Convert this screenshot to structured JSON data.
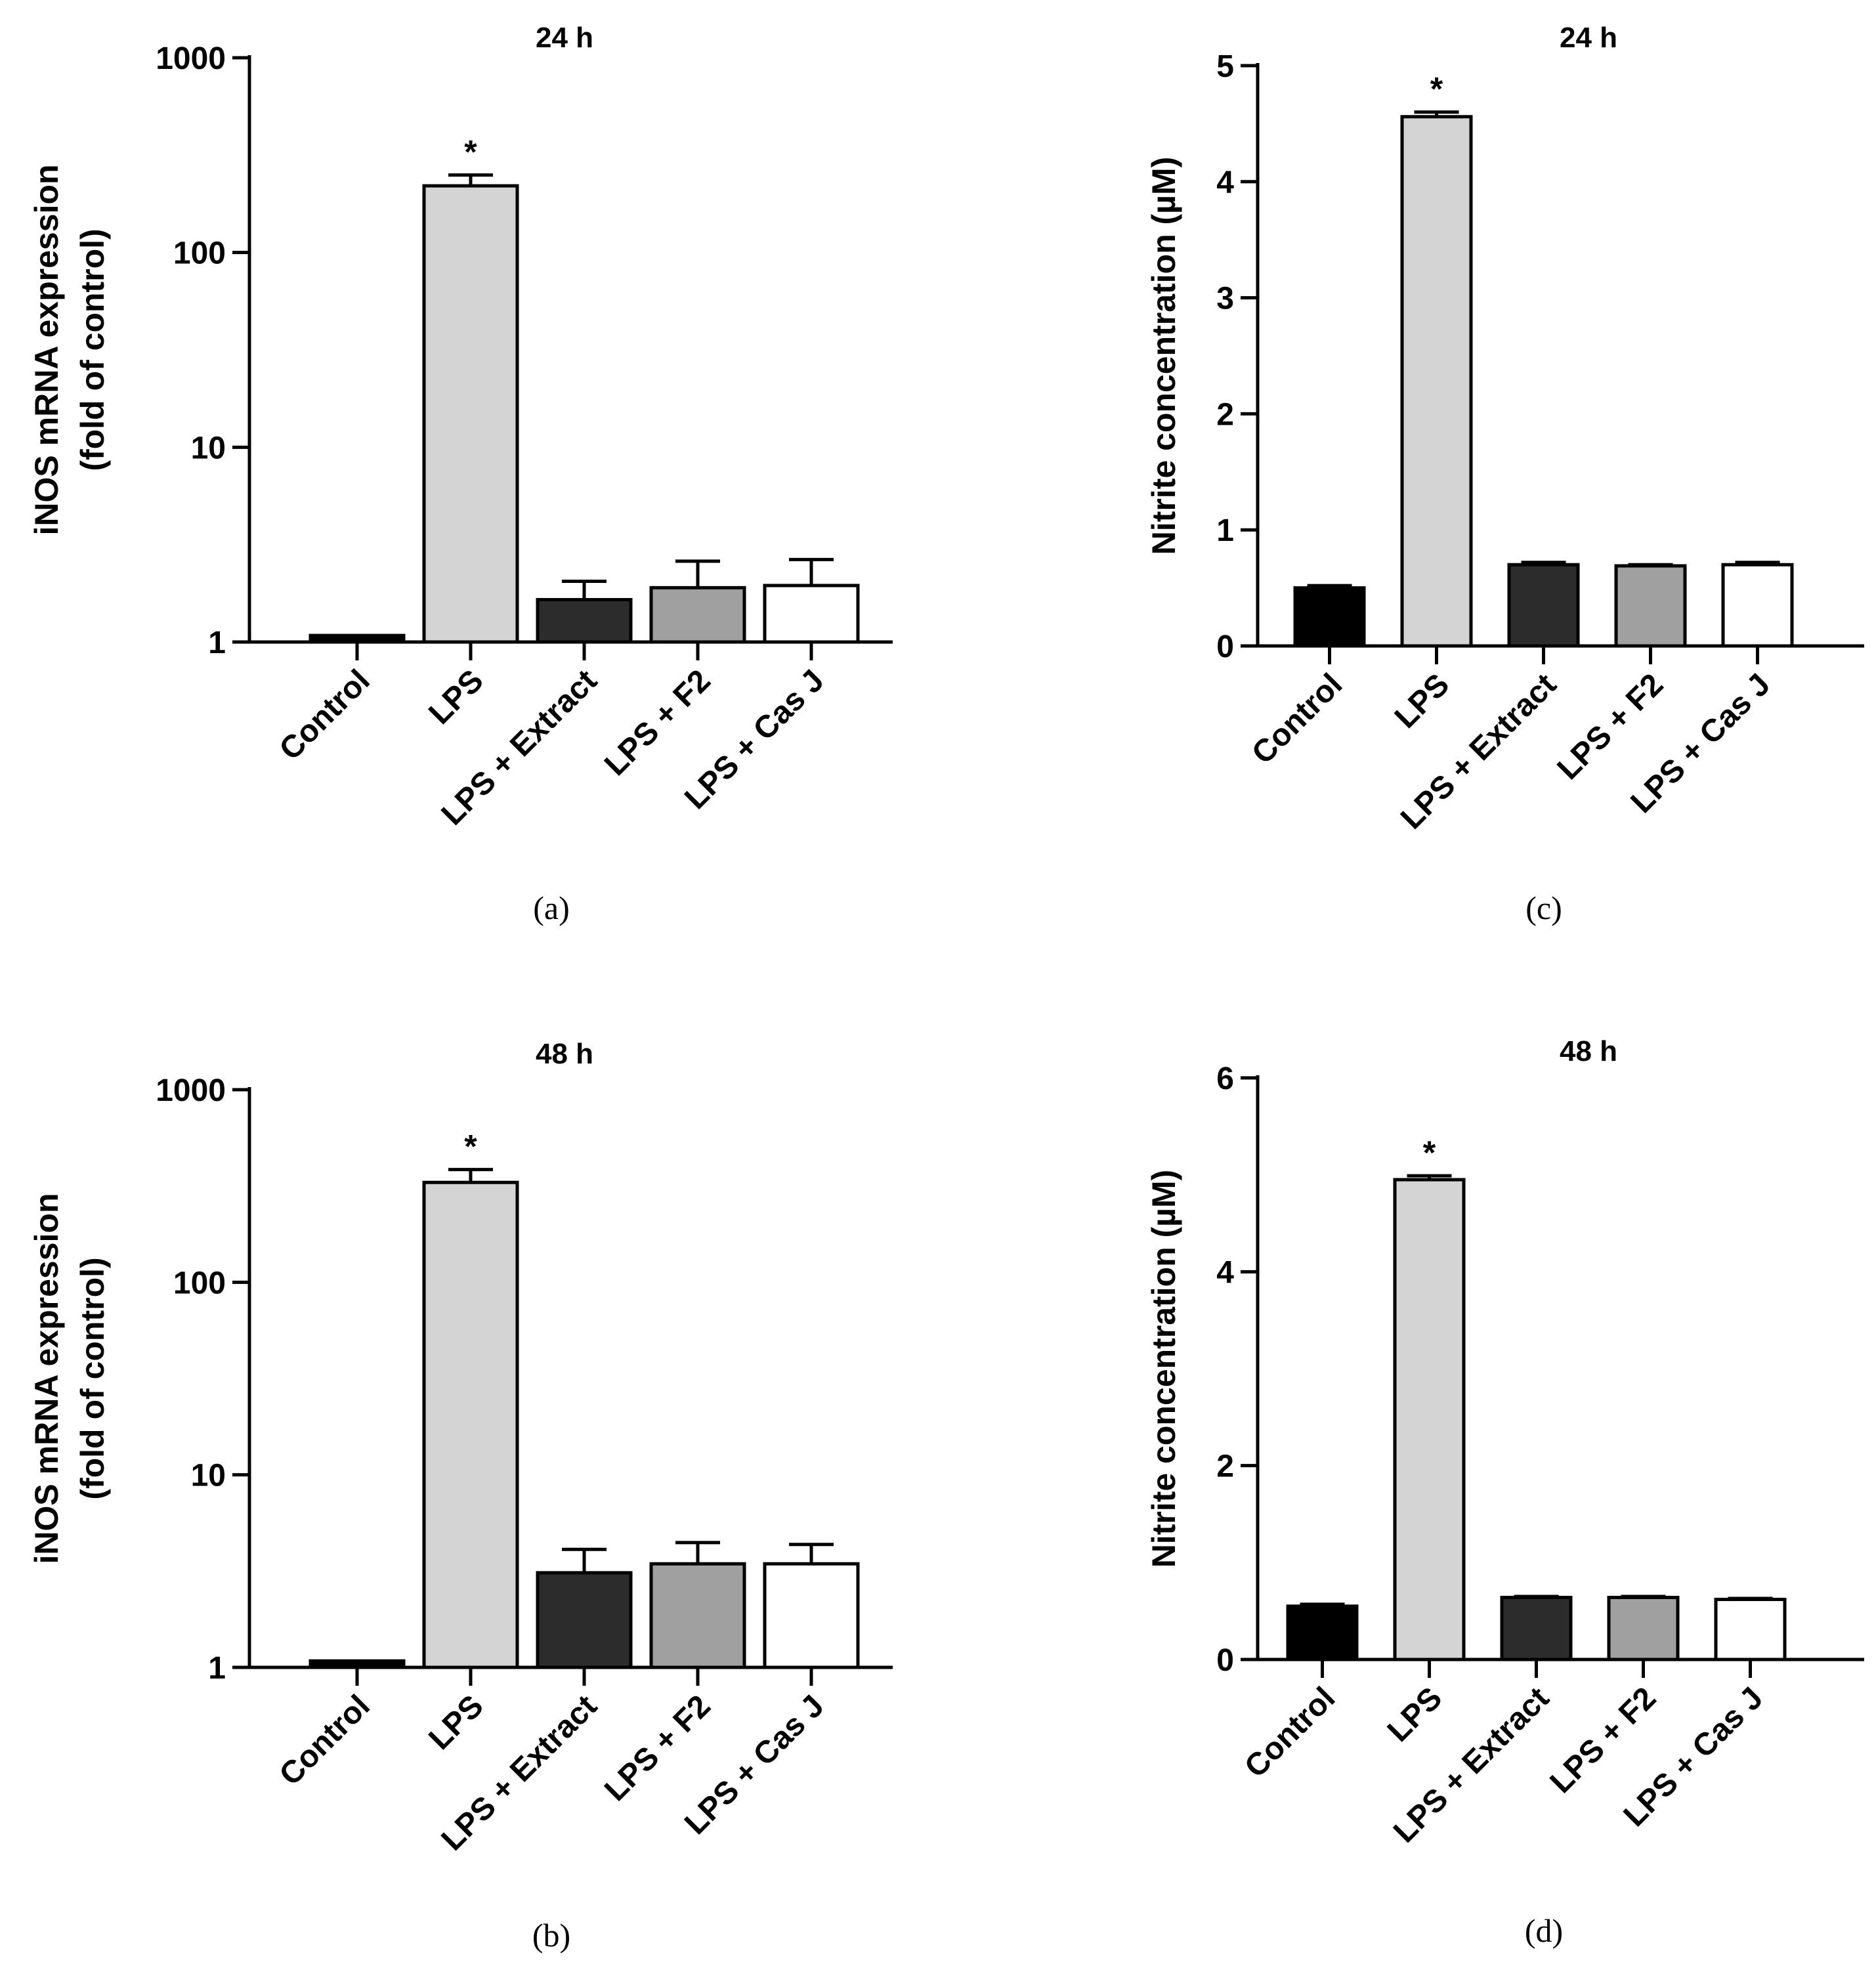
{
  "chart_data": [
    {
      "id": "a",
      "type": "bar",
      "scale": "log",
      "panel_label": "(a)",
      "title": "24 h",
      "ylabel_lines": [
        "iNOS mRNA expression",
        "(fold of control)"
      ],
      "categories": [
        "Control",
        "LPS",
        "LPS + Extract",
        "LPS + F2",
        "LPS + Cas J"
      ],
      "values": [
        1.08,
        220,
        1.65,
        1.9,
        1.95
      ],
      "errors": [
        0.0,
        30,
        0.4,
        0.7,
        0.7
      ],
      "significance": [
        "",
        "*",
        "",
        "",
        ""
      ],
      "colors": [
        "#000000",
        "#d4d4d4",
        "#2c2c2c",
        "#a0a0a0",
        "#ffffff"
      ],
      "ylim": [
        1,
        1000
      ],
      "yticks": [
        1,
        10,
        100,
        1000
      ],
      "ytick_labels": [
        "1",
        "10",
        "100",
        "1000"
      ]
    },
    {
      "id": "b",
      "type": "bar",
      "scale": "log",
      "panel_label": "(b)",
      "title": "48 h",
      "ylabel_lines": [
        "iNOS mRNA expression",
        "(fold of control)"
      ],
      "categories": [
        "Control",
        "LPS",
        "LPS + Extract",
        "LPS + F2",
        "LPS + Cas J"
      ],
      "values": [
        1.08,
        330,
        3.1,
        3.45,
        3.45
      ],
      "errors": [
        0.0,
        55,
        1.0,
        1.0,
        0.9
      ],
      "significance": [
        "",
        "*",
        "",
        "",
        ""
      ],
      "colors": [
        "#000000",
        "#d4d4d4",
        "#2c2c2c",
        "#a0a0a0",
        "#ffffff"
      ],
      "ylim": [
        1,
        1000
      ],
      "yticks": [
        1,
        10,
        100,
        1000
      ],
      "ytick_labels": [
        "1",
        "10",
        "100",
        "1000"
      ]
    },
    {
      "id": "c",
      "type": "bar",
      "scale": "linear",
      "panel_label": "(c)",
      "title": "24 h",
      "ylabel_lines": [
        "Nitrite concentration (µM)"
      ],
      "categories": [
        "Control",
        "LPS",
        "LPS + Extract",
        "LPS + F2",
        "LPS + Cas J"
      ],
      "values": [
        0.5,
        4.56,
        0.7,
        0.69,
        0.7
      ],
      "errors": [
        0.02,
        0.04,
        0.02,
        0.01,
        0.02
      ],
      "significance": [
        "",
        "*",
        "",
        "",
        ""
      ],
      "colors": [
        "#000000",
        "#d4d4d4",
        "#2c2c2c",
        "#a0a0a0",
        "#ffffff"
      ],
      "ylim": [
        0,
        5
      ],
      "yticks": [
        0,
        1,
        2,
        3,
        4,
        5
      ],
      "ytick_labels": [
        "0",
        "1",
        "2",
        "3",
        "4",
        "5"
      ]
    },
    {
      "id": "d",
      "type": "bar",
      "scale": "linear",
      "panel_label": "(d)",
      "title": "48 h",
      "ylabel_lines": [
        "Nitrite concentration (µM)"
      ],
      "categories": [
        "Control",
        "LPS",
        "LPS + Extract",
        "LPS + F2",
        "LPS + Cas J"
      ],
      "values": [
        0.55,
        4.95,
        0.64,
        0.64,
        0.62
      ],
      "errors": [
        0.02,
        0.04,
        0.01,
        0.01,
        0.01
      ],
      "significance": [
        "",
        "*",
        "",
        "",
        ""
      ],
      "colors": [
        "#000000",
        "#d4d4d4",
        "#2c2c2c",
        "#a0a0a0",
        "#ffffff"
      ],
      "ylim": [
        0,
        6
      ],
      "yticks": [
        0,
        2,
        4,
        6
      ],
      "ytick_labels": [
        "0",
        "2",
        "4",
        "6"
      ]
    }
  ]
}
